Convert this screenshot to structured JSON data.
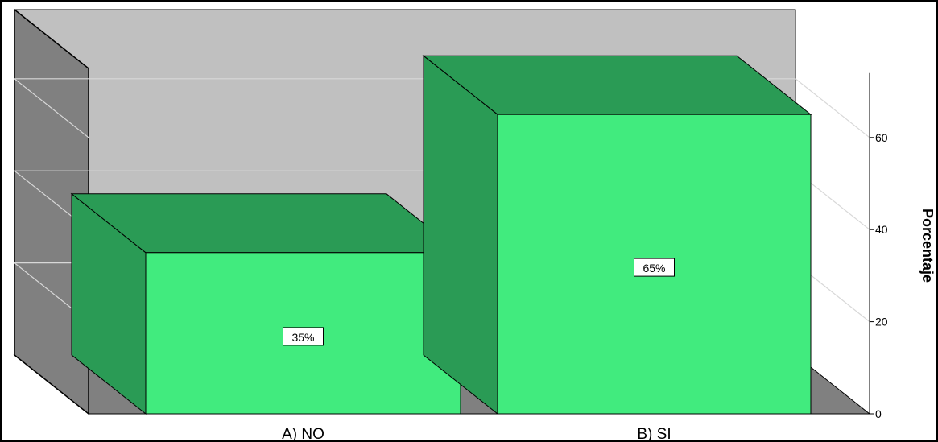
{
  "chart_data": {
    "type": "bar",
    "categories": [
      "A) NO",
      "B) SI"
    ],
    "values": [
      35,
      65
    ],
    "data_labels": [
      "35%",
      "65%"
    ],
    "ylabel": "Porcentaje",
    "ylim": [
      0,
      75
    ],
    "yticks": [
      0,
      20,
      40,
      60
    ],
    "grid": true,
    "colors": {
      "bar_front": "#41eb7e",
      "bar_top": "#2a9b55",
      "bar_side": "#2a9b55",
      "back_wall": "#c0c0c0",
      "side_wall": "#808080",
      "floor": "#808080"
    }
  }
}
